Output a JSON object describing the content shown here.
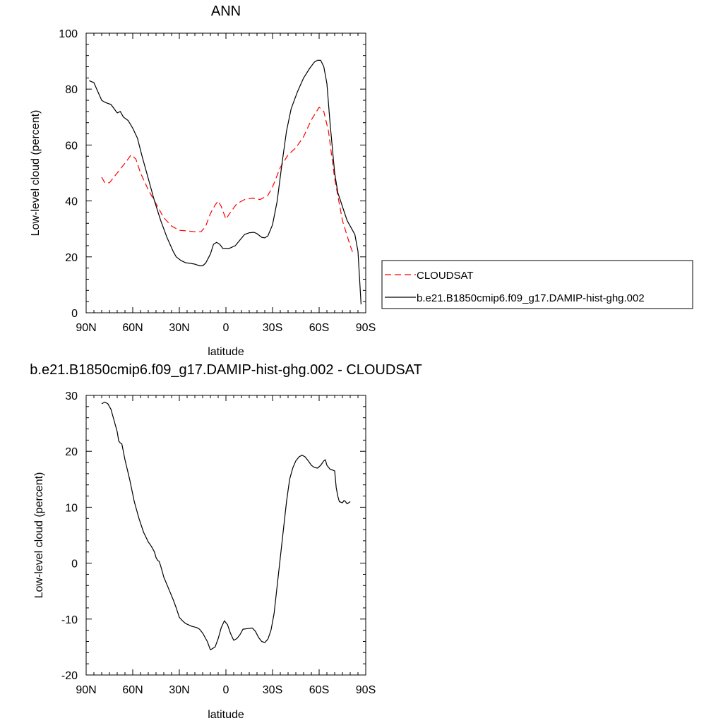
{
  "chart_data": [
    {
      "type": "line",
      "title": "ANN",
      "xlabel": "latitude",
      "ylabel": "Low-level cloud (percent)",
      "xlim": [
        90,
        -90
      ],
      "ylim": [
        0,
        100
      ],
      "xticks": [
        90,
        60,
        30,
        0,
        -30,
        -60,
        -90
      ],
      "xtick_labels": [
        "90N",
        "60N",
        "30N",
        "0",
        "30S",
        "60S",
        "90S"
      ],
      "yticks": [
        0,
        20,
        40,
        60,
        80,
        100
      ],
      "ytick_labels": [
        "0",
        "20",
        "40",
        "60",
        "80",
        "100"
      ],
      "grid": false,
      "legend_position": "right",
      "series": [
        {
          "name": "CLOUDSAT",
          "color": "#ff0000",
          "dash": "dashed",
          "points": [
            [
              80,
              48.5
            ],
            [
              78,
              46.5
            ],
            [
              75,
              46.5
            ],
            [
              70,
              50
            ],
            [
              65,
              53.5
            ],
            [
              61,
              56.5
            ],
            [
              58,
              55
            ],
            [
              55,
              50
            ],
            [
              50,
              44
            ],
            [
              45,
              39
            ],
            [
              40,
              34
            ],
            [
              35,
              31
            ],
            [
              30,
              29.5
            ],
            [
              25,
              29.3
            ],
            [
              20,
              29
            ],
            [
              16,
              29
            ],
            [
              13,
              31
            ],
            [
              10,
              35.5
            ],
            [
              7,
              38.5
            ],
            [
              5,
              40
            ],
            [
              3,
              38
            ],
            [
              0,
              33.5
            ],
            [
              -3,
              36
            ],
            [
              -7,
              39
            ],
            [
              -12,
              40.5
            ],
            [
              -17,
              41
            ],
            [
              -22,
              40.5
            ],
            [
              -27,
              42
            ],
            [
              -30,
              45
            ],
            [
              -35,
              52
            ],
            [
              -40,
              56.5
            ],
            [
              -45,
              59
            ],
            [
              -50,
              63
            ],
            [
              -55,
              69
            ],
            [
              -60,
              73.5
            ],
            [
              -63,
              72
            ],
            [
              -66,
              65
            ],
            [
              -70,
              48
            ],
            [
              -75,
              33
            ],
            [
              -80,
              24
            ],
            [
              -82,
              21
            ]
          ]
        },
        {
          "name": "b.e21.B1850cmip6.f09_g17.DAMIP-hist-ghg.002",
          "color": "#000000",
          "dash": "solid",
          "points": [
            [
              88,
              83
            ],
            [
              85,
              82.3
            ],
            [
              82,
              78.5
            ],
            [
              80,
              76
            ],
            [
              78,
              75.3
            ],
            [
              74,
              74.5
            ],
            [
              70,
              71.5
            ],
            [
              68,
              72
            ],
            [
              66,
              70
            ],
            [
              63,
              68.8
            ],
            [
              60,
              66
            ],
            [
              57,
              62.5
            ],
            [
              54,
              56
            ],
            [
              50,
              48
            ],
            [
              46,
              40
            ],
            [
              42,
              33
            ],
            [
              38,
              27
            ],
            [
              34,
              22
            ],
            [
              32,
              20
            ],
            [
              29,
              18.7
            ],
            [
              26,
              17.9
            ],
            [
              22,
              17.6
            ],
            [
              20,
              17.4
            ],
            [
              17,
              16.8
            ],
            [
              15,
              16.8
            ],
            [
              13,
              17.8
            ],
            [
              10,
              21
            ],
            [
              8,
              24.5
            ],
            [
              6,
              25.2
            ],
            [
              4,
              24.5
            ],
            [
              2,
              23
            ],
            [
              -2,
              23
            ],
            [
              -6,
              24
            ],
            [
              -9,
              26
            ],
            [
              -12,
              28
            ],
            [
              -15,
              28.6
            ],
            [
              -18,
              28.8
            ],
            [
              -20,
              28.3
            ],
            [
              -23,
              27
            ],
            [
              -25,
              26.8
            ],
            [
              -27,
              27.5
            ],
            [
              -30,
              31.5
            ],
            [
              -33,
              40
            ],
            [
              -36,
              53
            ],
            [
              -39,
              65
            ],
            [
              -42,
              73
            ],
            [
              -46,
              79
            ],
            [
              -50,
              84
            ],
            [
              -54,
              87.5
            ],
            [
              -57,
              89.7
            ],
            [
              -59,
              90.3
            ],
            [
              -61,
              90.3
            ],
            [
              -63,
              88
            ],
            [
              -65,
              82
            ],
            [
              -67,
              68
            ],
            [
              -70,
              50
            ],
            [
              -72,
              43
            ],
            [
              -75,
              38
            ],
            [
              -78,
              33
            ],
            [
              -81,
              30
            ],
            [
              -83,
              28
            ],
            [
              -85,
              22
            ],
            [
              -87,
              3
            ]
          ]
        }
      ]
    },
    {
      "type": "line",
      "title": "b.e21.B1850cmip6.f09_g17.DAMIP-hist-ghg.002 - CLOUDSAT",
      "xlabel": "latitude",
      "ylabel": "Low-level cloud (percent)",
      "xlim": [
        90,
        -90
      ],
      "ylim": [
        -20,
        30
      ],
      "xticks": [
        90,
        60,
        30,
        0,
        -30,
        -60,
        -90
      ],
      "xtick_labels": [
        "90N",
        "60N",
        "30N",
        "0",
        "30S",
        "60S",
        "90S"
      ],
      "yticks": [
        -20,
        -10,
        0,
        10,
        20,
        30
      ],
      "ytick_labels": [
        "-20",
        "-10",
        "0",
        "10",
        "20",
        "30"
      ],
      "grid": false,
      "series": [
        {
          "color": "#000000",
          "dash": "solid",
          "points": [
            [
              80,
              28.5
            ],
            [
              78,
              28.8
            ],
            [
              76,
              28.5
            ],
            [
              74,
              27.5
            ],
            [
              72,
              25.5
            ],
            [
              70,
              23.5
            ],
            [
              69,
              21.8
            ],
            [
              68,
              21.5
            ],
            [
              67,
              21.3
            ],
            [
              65,
              18.5
            ],
            [
              62,
              15
            ],
            [
              59,
              11
            ],
            [
              56,
              8
            ],
            [
              53,
              5.5
            ],
            [
              50,
              3.8
            ],
            [
              48,
              3
            ],
            [
              46,
              2
            ],
            [
              45,
              1
            ],
            [
              44,
              0.5
            ],
            [
              43,
              0.3
            ],
            [
              42,
              -0.5
            ],
            [
              40,
              -2.5
            ],
            [
              37,
              -4.5
            ],
            [
              34,
              -6.5
            ],
            [
              32,
              -8
            ],
            [
              30,
              -9.7
            ],
            [
              28,
              -10.3
            ],
            [
              26,
              -10.8
            ],
            [
              22,
              -11.3
            ],
            [
              19,
              -11.5
            ],
            [
              17,
              -11.8
            ],
            [
              15,
              -12.5
            ],
            [
              12,
              -14
            ],
            [
              10,
              -15.5
            ],
            [
              7,
              -15
            ],
            [
              5,
              -13.5
            ],
            [
              3,
              -11.5
            ],
            [
              1,
              -10.3
            ],
            [
              -1,
              -11
            ],
            [
              -3,
              -12.6
            ],
            [
              -5,
              -13.8
            ],
            [
              -7,
              -13.5
            ],
            [
              -9,
              -12.8
            ],
            [
              -11,
              -11.8
            ],
            [
              -14,
              -11.7
            ],
            [
              -17,
              -11.6
            ],
            [
              -19,
              -12.2
            ],
            [
              -21,
              -13.3
            ],
            [
              -23,
              -14
            ],
            [
              -25,
              -14.2
            ],
            [
              -27,
              -13.6
            ],
            [
              -29,
              -12
            ],
            [
              -31,
              -9
            ],
            [
              -33,
              -4
            ],
            [
              -35,
              1
            ],
            [
              -37,
              6
            ],
            [
              -39,
              11
            ],
            [
              -41,
              15
            ],
            [
              -43,
              17
            ],
            [
              -45,
              18.3
            ],
            [
              -47,
              19
            ],
            [
              -49,
              19.3
            ],
            [
              -51,
              19
            ],
            [
              -53,
              18.3
            ],
            [
              -55,
              17.5
            ],
            [
              -57,
              17.1
            ],
            [
              -59,
              17
            ],
            [
              -61,
              17.5
            ],
            [
              -63,
              18.3
            ],
            [
              -64,
              18.5
            ],
            [
              -65,
              17.5
            ],
            [
              -67,
              16.8
            ],
            [
              -69,
              16.6
            ],
            [
              -70,
              16.5
            ],
            [
              -71,
              13.5
            ],
            [
              -72,
              12
            ],
            [
              -73,
              11
            ],
            [
              -75,
              10.8
            ],
            [
              -76,
              11.2
            ],
            [
              -77,
              11
            ],
            [
              -78,
              10.6
            ],
            [
              -80,
              11
            ]
          ]
        }
      ]
    }
  ]
}
